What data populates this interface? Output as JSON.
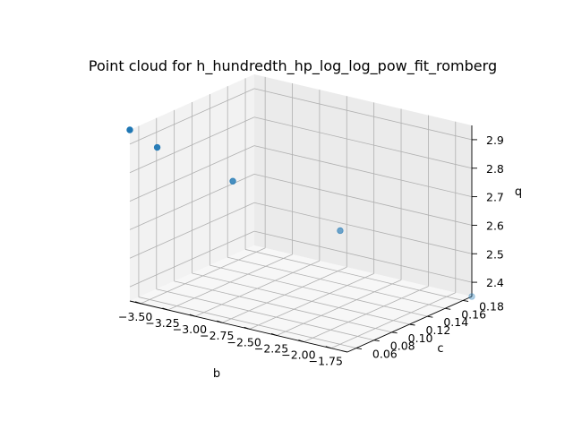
{
  "chart_data": {
    "type": "scatter",
    "title": "Point cloud for h_hundredth_hp_log_log_pow_fit_romberg",
    "xlabel": "b",
    "ylabel": "c",
    "zlabel": "q",
    "x_ticks": [
      "−3.50",
      "−3.25",
      "−3.00",
      "−2.75",
      "−2.50",
      "−2.25",
      "−2.00",
      "−1.75"
    ],
    "y_ticks": [
      "0.06",
      "0.08",
      "0.10",
      "0.12",
      "0.14",
      "0.16",
      "0.18"
    ],
    "z_ticks": [
      "2.4",
      "2.5",
      "2.6",
      "2.7",
      "2.8",
      "2.9"
    ],
    "xlim": [
      -3.6,
      -1.6
    ],
    "ylim": [
      0.05,
      0.19
    ],
    "zlim": [
      2.35,
      2.95
    ],
    "points": [
      {
        "x": -3.6,
        "y": 0.05,
        "z": 2.95
      },
      {
        "x": -3.43,
        "y": 0.06,
        "z": 2.89
      },
      {
        "x": -2.98,
        "y": 0.09,
        "z": 2.77
      },
      {
        "x": -2.32,
        "y": 0.13,
        "z": 2.6
      },
      {
        "x": -1.6,
        "y": 0.19,
        "z": 2.35
      }
    ],
    "marker_color": "#1f77b4",
    "grid": true
  }
}
